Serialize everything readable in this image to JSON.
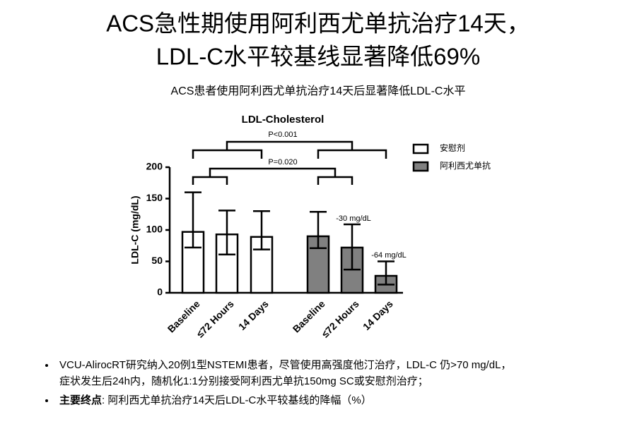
{
  "title_lines": [
    "ACS急性期使用阿利西尤单抗治疗14天，",
    "LDL-C水平较基线显著降低69%"
  ],
  "subtitle": "ACS患者使用阿利西尤单抗治疗14天后显著降低LDL-C水平",
  "chart_data": {
    "type": "bar",
    "title": "LDL-Cholesterol",
    "y_label": "LDL-C (mg/dL)",
    "categories": [
      "Baseline",
      "≤72 Hours",
      "14 Days"
    ],
    "series": [
      {
        "name": "安慰剂",
        "color": "#ffffff",
        "values": [
          97,
          93,
          89
        ],
        "lower": [
          72,
          61,
          69
        ],
        "upper": [
          160,
          131,
          130
        ]
      },
      {
        "name": "阿利西尤单抗",
        "color": "#808080",
        "values": [
          90,
          72,
          27
        ],
        "lower": [
          71,
          37,
          13
        ],
        "upper": [
          129,
          109,
          50
        ]
      }
    ],
    "ylim": [
      0,
      200
    ],
    "yticks": [
      0,
      50,
      100,
      150,
      200
    ],
    "legend": "right",
    "annotations": [
      "P<0.001",
      "P=0.020",
      "-30 mg/dL",
      "-64 mg/dL"
    ]
  },
  "bullets": [
    {
      "lines": [
        "VCU-AlirocRT研究纳入20例1型NSTEMI患者，尽管使用高强度他汀治疗，LDL-C 仍>70 mg/dL，",
        "症状发生后24h内，随机化1:1分别接受阿利西尤单抗150mg SC或安慰剂治疗；"
      ]
    },
    {
      "bold": "主要终点",
      "text": ": 阿利西尤单抗治疗14天后LDL-C水平较基线的降幅（%）"
    }
  ]
}
